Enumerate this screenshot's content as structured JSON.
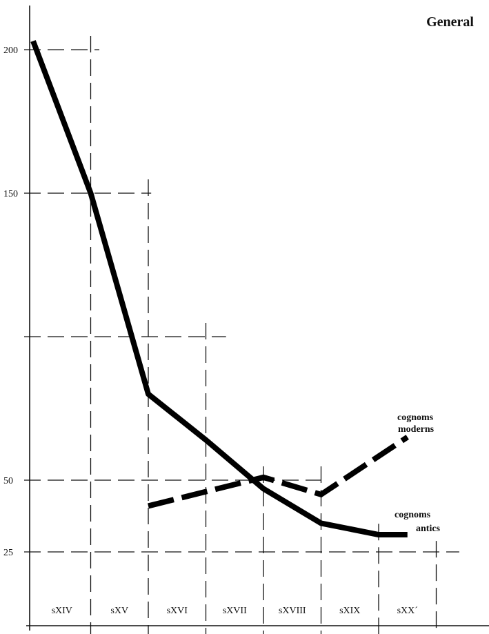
{
  "chart_data": {
    "type": "line",
    "title": "General",
    "xlabel": "",
    "ylabel": "",
    "categories": [
      "sXIV",
      "sXV",
      "sXVI",
      "sXVII",
      "sXVIII",
      "sXIX",
      "sXX´"
    ],
    "y_ticks": [
      {
        "value": 200,
        "label": "200"
      },
      {
        "value": 150,
        "label": "150"
      },
      {
        "value": 100,
        "label": ""
      },
      {
        "value": 50,
        "label": "50"
      },
      {
        "value": 25,
        "label": "25"
      }
    ],
    "ylim": [
      0,
      210
    ],
    "grid": true,
    "series": [
      {
        "name": "cognoms antics",
        "label_lines": [
          "cognoms",
          "antics"
        ],
        "style": "solid",
        "x": [
          0,
          1,
          2,
          3,
          4,
          5,
          6,
          6.5
        ],
        "values": [
          203,
          150,
          80,
          64,
          47,
          35,
          31,
          31
        ]
      },
      {
        "name": "cognoms moderns",
        "label_lines": [
          "cognoms",
          "moderns"
        ],
        "style": "dashed",
        "x": [
          2,
          3,
          4,
          5,
          6.5
        ],
        "values": [
          41,
          46,
          51,
          45,
          65
        ]
      }
    ]
  }
}
